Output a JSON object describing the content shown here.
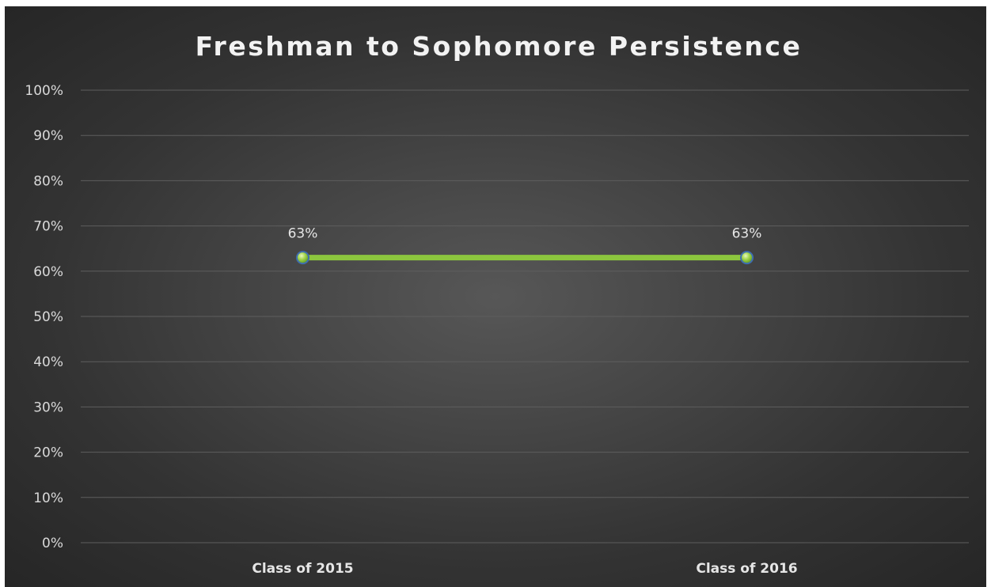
{
  "chart_data": {
    "type": "line",
    "title": "Freshman to Sophomore Persistence",
    "categories": [
      "Class of 2015",
      "Class of 2016"
    ],
    "series": [
      {
        "values": [
          0.63,
          0.63
        ],
        "data_labels": [
          "63%",
          "63%"
        ]
      }
    ],
    "ylim": [
      0,
      1
    ],
    "y_ticks": [
      0,
      0.1,
      0.2,
      0.3,
      0.4,
      0.5,
      0.6,
      0.7,
      0.8,
      0.9,
      1.0
    ],
    "y_tick_labels": [
      "0%",
      "10%",
      "20%",
      "30%",
      "40%",
      "50%",
      "60%",
      "70%",
      "80%",
      "90%",
      "100%"
    ],
    "xlabel": "",
    "ylabel": "",
    "grid": true,
    "legend": "none",
    "colors": {
      "line": "#8cc63e",
      "marker_fill": "#a6d84f",
      "marker_edge": "#3f6fb0",
      "grid": "#5e5e5e"
    }
  }
}
